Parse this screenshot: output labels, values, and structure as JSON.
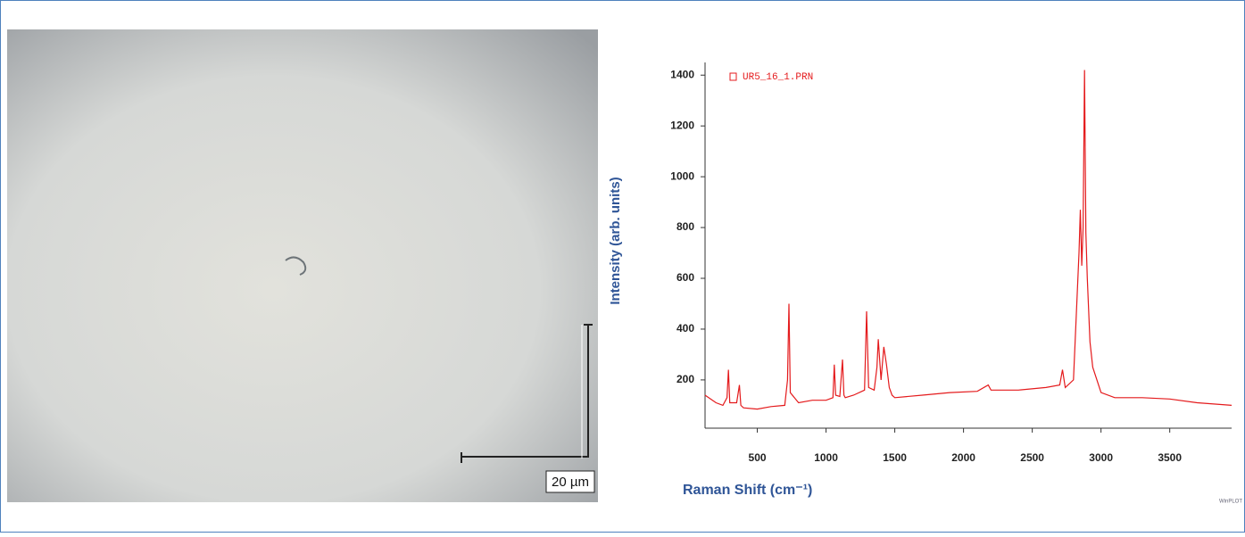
{
  "micrograph": {
    "scale_label": "20 µm"
  },
  "corner_label": "WinPLOT",
  "chart_data": {
    "type": "line",
    "x_label": "Raman Shift (cm⁻¹)",
    "y_label": "Intensity (arb. units)",
    "x": [
      120,
      200,
      250,
      280,
      290,
      300,
      350,
      370,
      380,
      400,
      500,
      600,
      700,
      720,
      730,
      740,
      800,
      900,
      1000,
      1050,
      1060,
      1070,
      1100,
      1120,
      1130,
      1140,
      1200,
      1280,
      1295,
      1310,
      1350,
      1370,
      1380,
      1400,
      1420,
      1440,
      1460,
      1480,
      1500,
      1700,
      1900,
      2100,
      2180,
      2200,
      2400,
      2600,
      2700,
      2720,
      2740,
      2800,
      2840,
      2850,
      2860,
      2870,
      2880,
      2890,
      2900,
      2920,
      2940,
      3000,
      3100,
      3300,
      3500,
      3700,
      3950
    ],
    "series": [
      {
        "name": "UR5_16_1.PRN",
        "color": "#e41a1c",
        "values": [
          140,
          110,
          100,
          130,
          240,
          110,
          110,
          180,
          100,
          90,
          85,
          95,
          100,
          200,
          500,
          150,
          110,
          120,
          120,
          130,
          260,
          140,
          135,
          280,
          140,
          130,
          140,
          160,
          470,
          170,
          160,
          250,
          360,
          200,
          330,
          260,
          170,
          140,
          130,
          140,
          150,
          155,
          180,
          160,
          160,
          170,
          180,
          240,
          170,
          200,
          700,
          870,
          650,
          800,
          1420,
          780,
          600,
          350,
          250,
          150,
          130,
          130,
          125,
          110,
          100
        ]
      }
    ],
    "xlim": [
      120,
      3950
    ],
    "ylim": [
      10,
      1450
    ],
    "xticks": [
      500,
      1000,
      1500,
      2000,
      2500,
      3000,
      3500
    ],
    "yticks": [
      200,
      400,
      600,
      800,
      1000,
      1200,
      1400
    ],
    "grid": false,
    "legend": "upper left"
  }
}
